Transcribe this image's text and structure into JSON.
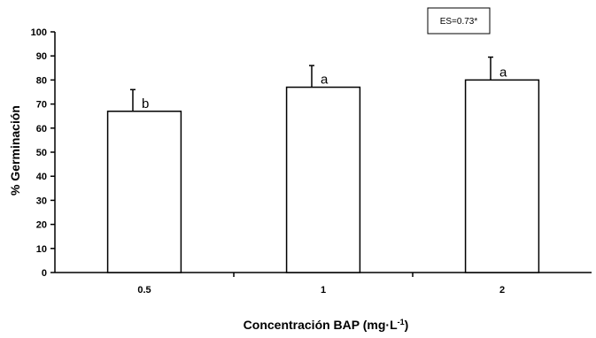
{
  "chart_data": {
    "type": "bar",
    "categories": [
      "0.5",
      "1",
      "2"
    ],
    "values": [
      67,
      77,
      80
    ],
    "error": [
      9,
      9,
      9.5
    ],
    "letters": [
      "b",
      "a",
      "a"
    ],
    "ylabel": "% Germinación",
    "xlabel_main": "Concentración BAP (mg·L",
    "xlabel_sup": "-1",
    "xlabel_end": ")",
    "ylim": [
      0,
      100
    ],
    "yticks": [
      "0",
      "10",
      "20",
      "30",
      "40",
      "50",
      "60",
      "70",
      "80",
      "90",
      "100"
    ],
    "annotation": "ES=0.73*",
    "bar_fill": "#ffffff",
    "bar_stroke": "#000000"
  }
}
